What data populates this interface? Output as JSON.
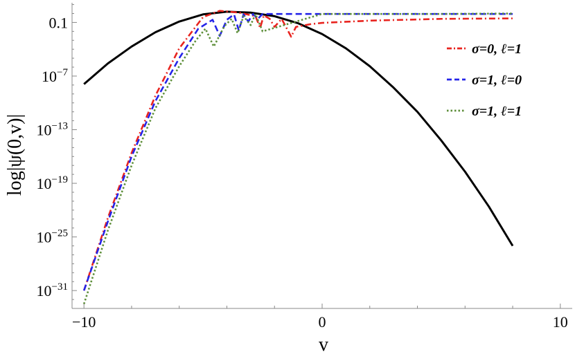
{
  "chart_data": {
    "type": "line",
    "title": "",
    "xlabel": "v",
    "ylabel": "log|ψ(0,v)|",
    "xlim": [
      -10.5,
      10.5
    ],
    "ylim": [
      -33,
      1.2
    ],
    "y_scale": "log10",
    "grid": false,
    "legend_position": "top-right",
    "x_ticks": [
      {
        "value": -10,
        "label": "−10"
      },
      {
        "value": 0,
        "label": "0"
      },
      {
        "value": 10,
        "label": "10"
      }
    ],
    "y_ticks": [
      {
        "value": -1,
        "label_base": "0.1",
        "label_exp": ""
      },
      {
        "value": -7,
        "label_base": "10",
        "label_exp": "−7"
      },
      {
        "value": -13,
        "label_base": "10",
        "label_exp": "−13"
      },
      {
        "value": -19,
        "label_base": "10",
        "label_exp": "−19"
      },
      {
        "value": -25,
        "label_base": "10",
        "label_exp": "−25"
      },
      {
        "value": -31,
        "label_base": "10",
        "label_exp": "−31"
      }
    ],
    "series": [
      {
        "name": "",
        "color": "#000000",
        "style": "solid",
        "x": [
          -10,
          -9,
          -8,
          -7,
          -6,
          -5,
          -4,
          -3,
          -2,
          -1,
          0,
          1,
          2,
          3,
          4,
          5,
          6,
          7,
          8
        ],
        "y": [
          -7.9,
          -5.6,
          -3.7,
          -2.1,
          -0.9,
          -0.1,
          0.2,
          0.1,
          -0.3,
          -1.1,
          -2.3,
          -3.9,
          -5.9,
          -8.3,
          -11.0,
          -14.2,
          -17.7,
          -21.6,
          -26.0
        ]
      },
      {
        "name": "σ=0, ℓ=1",
        "color": "#e8241f",
        "style": "dashdot",
        "x": [
          -10,
          -9,
          -8,
          -7,
          -6,
          -5,
          -4.3,
          -3.5,
          -2.8,
          -2.6,
          -2.45,
          -2.2,
          -2.0,
          -1.7,
          -1.3,
          -1.1,
          -0.5,
          0,
          2,
          5,
          8
        ],
        "y": [
          -31,
          -22.9,
          -15.6,
          -9.2,
          -3.9,
          -0.4,
          0.3,
          0.1,
          -0.3,
          -1.6,
          -0.2,
          -0.6,
          -1.5,
          -0.6,
          -2.6,
          -1.5,
          -1.2,
          -1.05,
          -0.8,
          -0.6,
          -0.55
        ]
      },
      {
        "name": "σ=1, ℓ=0",
        "color": "#2424e8",
        "style": "dashed",
        "x": [
          -10,
          -9,
          -8,
          -7,
          -6,
          -5.2,
          -4.6,
          -4.3,
          -4.0,
          -3.7,
          -3.5,
          -3.3,
          -3.1,
          -2.9,
          -2.7,
          -2.5,
          0,
          5,
          8
        ],
        "y": [
          -31,
          -23.3,
          -16.0,
          -9.8,
          -5.0,
          -1.7,
          -0.7,
          -2.5,
          -0.7,
          -0.1,
          -1.9,
          -0.1,
          -0.9,
          -0.05,
          -0.6,
          -0.05,
          -0.05,
          -0.05,
          -0.05
        ]
      },
      {
        "name": "σ=1, ℓ=1",
        "color": "#5e8f3a",
        "style": "dotted",
        "x": [
          -10,
          -9,
          -8,
          -7,
          -6,
          -5.3,
          -4.9,
          -4.55,
          -4.1,
          -3.8,
          -3.55,
          -3.3,
          -3.0,
          -2.8,
          -2.5,
          0,
          5,
          8
        ],
        "y": [
          -32.5,
          -24.3,
          -17.0,
          -10.6,
          -5.9,
          -3.0,
          -1.7,
          -3.7,
          -1.4,
          -0.6,
          -2.2,
          -0.3,
          -1.3,
          -0.05,
          -2.0,
          -0.05,
          -0.05,
          0.0
        ]
      }
    ]
  }
}
